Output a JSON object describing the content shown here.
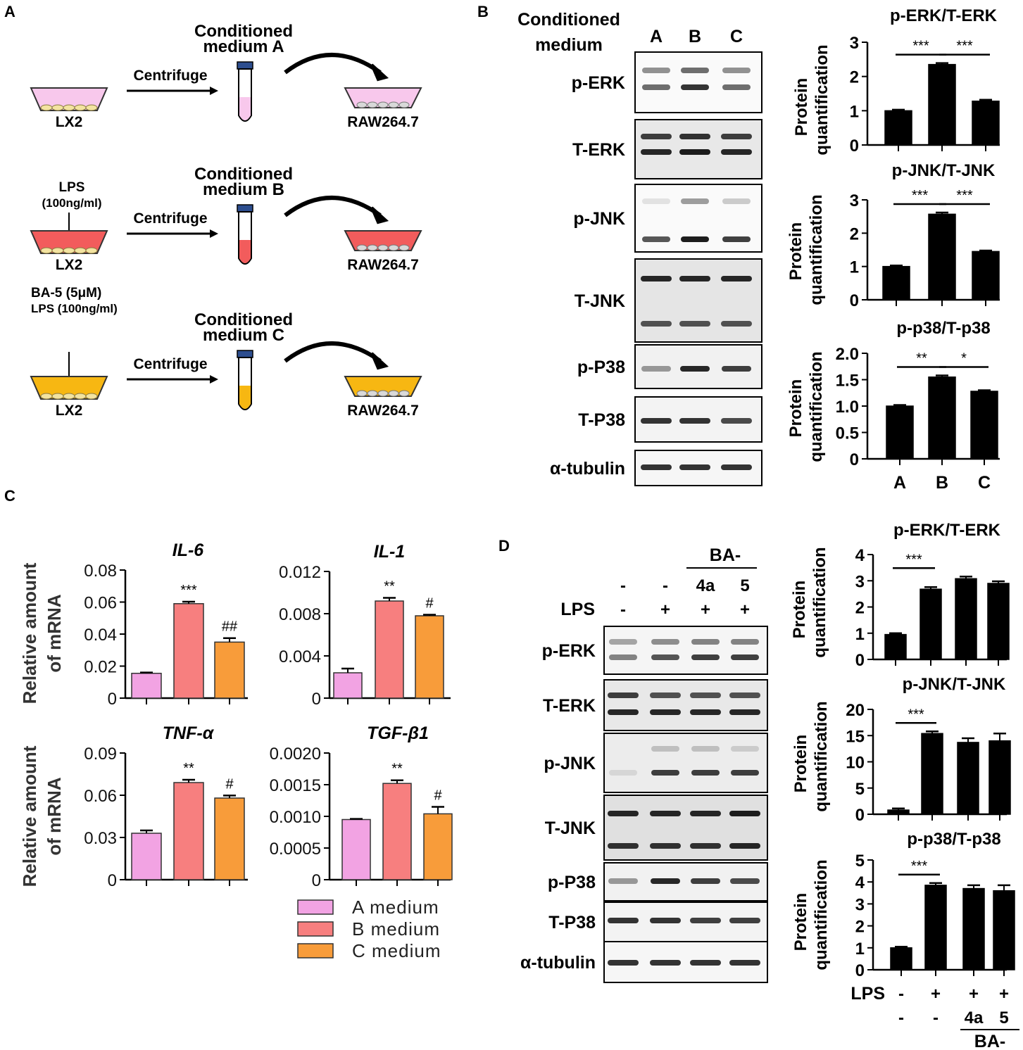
{
  "panels": {
    "A": {
      "letter": "A",
      "rows": [
        {
          "title_l1": "Conditioned",
          "title_l2": "medium A",
          "treat_l1": "",
          "treat_l2": "",
          "action": "Centrifuge",
          "source": "LX2",
          "target": "RAW264.7",
          "color": "#f8c8ec"
        },
        {
          "title_l1": "Conditioned",
          "title_l2": "medium B",
          "treat_l1": "LPS",
          "treat_l2": "(100ng/ml)",
          "action": "Centrifuge",
          "source": "LX2",
          "target": "RAW264.7",
          "color": "#f25c5c"
        },
        {
          "title_l1": "Conditioned",
          "title_l2": "medium C",
          "treat_l1": "BA-5 (5μM)",
          "treat_l2": "LPS (100ng/ml)",
          "action": "Centrifuge",
          "source": "LX2",
          "target": "RAW264.7",
          "color": "#f7b712"
        }
      ]
    },
    "B": {
      "letter": "B",
      "header_l1": "Conditioned",
      "header_l2": "medium",
      "lanes": [
        "A",
        "B",
        "C"
      ],
      "blots": [
        "p-ERK",
        "T-ERK",
        "p-JNK",
        "T-JNK",
        "p-P38",
        "T-P38",
        "α-tubulin"
      ]
    },
    "C": {
      "letter": "C",
      "ylabel_l1": "Relative amount",
      "ylabel_l2": "of mRNA",
      "legend": [
        "A medium",
        "B medium",
        "C medium"
      ],
      "colors": [
        "#f2a3e3",
        "#f77f7f",
        "#f89c3a"
      ]
    },
    "D": {
      "letter": "D",
      "ba_label": "BA-",
      "row_lps_label": "LPS",
      "row1": [
        "-",
        "-",
        "4a",
        "5"
      ],
      "row2": [
        "-",
        "+",
        "+",
        "+"
      ],
      "blots": [
        "p-ERK",
        "T-ERK",
        "p-JNK",
        "T-JNK",
        "p-P38",
        "T-P38",
        "α-tubulin"
      ],
      "xrow_lps_label": "LPS",
      "xrow_lps": [
        "-",
        "+",
        "+",
        "+"
      ],
      "xrow_ba": [
        "-",
        "-",
        "4a",
        "5"
      ],
      "xrow_ba_label": "BA-"
    }
  },
  "chart_data": [
    {
      "panel": "B",
      "type": "bar",
      "title": "p-ERK/T-ERK",
      "ylabel_l1": "Protein",
      "ylabel_l2": "quantification",
      "categories": [
        "A",
        "B",
        "C"
      ],
      "values": [
        1.0,
        2.35,
        1.28
      ],
      "errors": [
        0.03,
        0.04,
        0.04
      ],
      "ylim": [
        0,
        3
      ],
      "ticks": [
        "0",
        "1",
        "2",
        "3"
      ],
      "sig": [
        {
          "from": 0,
          "to": 1,
          "label": "***"
        },
        {
          "from": 1,
          "to": 2,
          "label": "***"
        }
      ],
      "show_x": false
    },
    {
      "panel": "B",
      "type": "bar",
      "title": "p-JNK/T-JNK",
      "ylabel_l1": "Protein",
      "ylabel_l2": "quantification",
      "categories": [
        "A",
        "B",
        "C"
      ],
      "values": [
        1.0,
        2.57,
        1.45
      ],
      "errors": [
        0.03,
        0.05,
        0.03
      ],
      "ylim": [
        0,
        3
      ],
      "ticks": [
        "0",
        "1",
        "2",
        "3"
      ],
      "sig": [
        {
          "from": 0,
          "to": 1,
          "label": "***"
        },
        {
          "from": 1,
          "to": 2,
          "label": "***"
        }
      ],
      "show_x": false
    },
    {
      "panel": "B",
      "type": "bar",
      "title": "p-p38/T-p38",
      "ylabel_l1": "Protein",
      "ylabel_l2": "quantification",
      "categories": [
        "A",
        "B",
        "C"
      ],
      "values": [
        1.0,
        1.55,
        1.28
      ],
      "errors": [
        0.02,
        0.03,
        0.02
      ],
      "ylim": [
        0,
        2
      ],
      "ticks": [
        "0",
        "0.5",
        "1.0",
        "1.5",
        "2.0"
      ],
      "sig": [
        {
          "from": 0,
          "to": 1,
          "label": "**"
        },
        {
          "from": 1,
          "to": 2,
          "label": "*"
        }
      ],
      "show_x": true
    },
    {
      "panel": "C",
      "type": "bar",
      "title": "IL-6",
      "categories": [
        "A medium",
        "B medium",
        "C medium"
      ],
      "values": [
        0.0155,
        0.059,
        0.035
      ],
      "errors": [
        0.0005,
        0.0012,
        0.0025
      ],
      "ylim": [
        0,
        0.08
      ],
      "ticks": [
        "0",
        "0.02",
        "0.04",
        "0.06",
        "0.08"
      ],
      "labels": [
        "",
        "***",
        "##"
      ]
    },
    {
      "panel": "C",
      "type": "bar",
      "title": "IL-1",
      "categories": [
        "A medium",
        "B medium",
        "C medium"
      ],
      "values": [
        0.0024,
        0.0092,
        0.0078
      ],
      "errors": [
        0.0004,
        0.0003,
        0.0001
      ],
      "ylim": [
        0,
        0.012
      ],
      "ticks": [
        "0",
        "0.004",
        "0.008",
        "0.012"
      ],
      "labels": [
        "",
        "**",
        "#"
      ]
    },
    {
      "panel": "C",
      "type": "bar",
      "title": "TNF-α",
      "categories": [
        "A medium",
        "B medium",
        "C medium"
      ],
      "values": [
        0.033,
        0.069,
        0.058
      ],
      "errors": [
        0.002,
        0.002,
        0.0018
      ],
      "ylim": [
        0,
        0.09
      ],
      "ticks": [
        "0",
        "0.03",
        "0.06",
        "0.09"
      ],
      "labels": [
        "",
        "**",
        "#"
      ]
    },
    {
      "panel": "C",
      "type": "bar",
      "title": "TGF-β1",
      "categories": [
        "A medium",
        "B medium",
        "C medium"
      ],
      "values": [
        0.00095,
        0.00152,
        0.00104
      ],
      "errors": [
        1e-05,
        5e-05,
        0.00011
      ],
      "ylim": [
        0,
        0.002
      ],
      "ticks": [
        "0",
        "0.0005",
        "0.0010",
        "0.0015",
        "0.0020"
      ],
      "labels": [
        "",
        "**",
        "#"
      ]
    },
    {
      "panel": "D",
      "type": "bar",
      "title": "p-ERK/T-ERK",
      "ylabel_l1": "Protein",
      "ylabel_l2": "quantification",
      "categories": [
        "-/-",
        "+/-",
        "+/4a",
        "+/5"
      ],
      "values": [
        0.95,
        2.68,
        3.08,
        2.9
      ],
      "errors": [
        0.05,
        0.08,
        0.08,
        0.08
      ],
      "ylim": [
        0,
        4
      ],
      "ticks": [
        "0",
        "1",
        "2",
        "3",
        "4"
      ],
      "sig": [
        {
          "from": 0,
          "to": 1,
          "label": "***"
        }
      ]
    },
    {
      "panel": "D",
      "type": "bar",
      "title": "p-JNK/T-JNK",
      "ylabel_l1": "Protein",
      "ylabel_l2": "quantification",
      "categories": [
        "-/-",
        "+/-",
        "+/4a",
        "+/5"
      ],
      "values": [
        0.8,
        15.4,
        13.7,
        14.0
      ],
      "errors": [
        0.3,
        0.4,
        0.8,
        1.4
      ],
      "ylim": [
        0,
        20
      ],
      "ticks": [
        "0",
        "5",
        "10",
        "15",
        "20"
      ],
      "sig": [
        {
          "from": 0,
          "to": 1,
          "label": "***"
        }
      ]
    },
    {
      "panel": "D",
      "type": "bar",
      "title": "p-p38/T-p38",
      "ylabel_l1": "Protein",
      "ylabel_l2": "quantification",
      "categories": [
        "-/-",
        "+/-",
        "+/4a",
        "+/5"
      ],
      "values": [
        1.0,
        3.85,
        3.7,
        3.6
      ],
      "errors": [
        0.05,
        0.1,
        0.15,
        0.25
      ],
      "ylim": [
        0,
        5
      ],
      "ticks": [
        "0",
        "1",
        "2",
        "3",
        "4",
        "5"
      ],
      "sig": [
        {
          "from": 0,
          "to": 1,
          "label": "***"
        }
      ]
    }
  ]
}
